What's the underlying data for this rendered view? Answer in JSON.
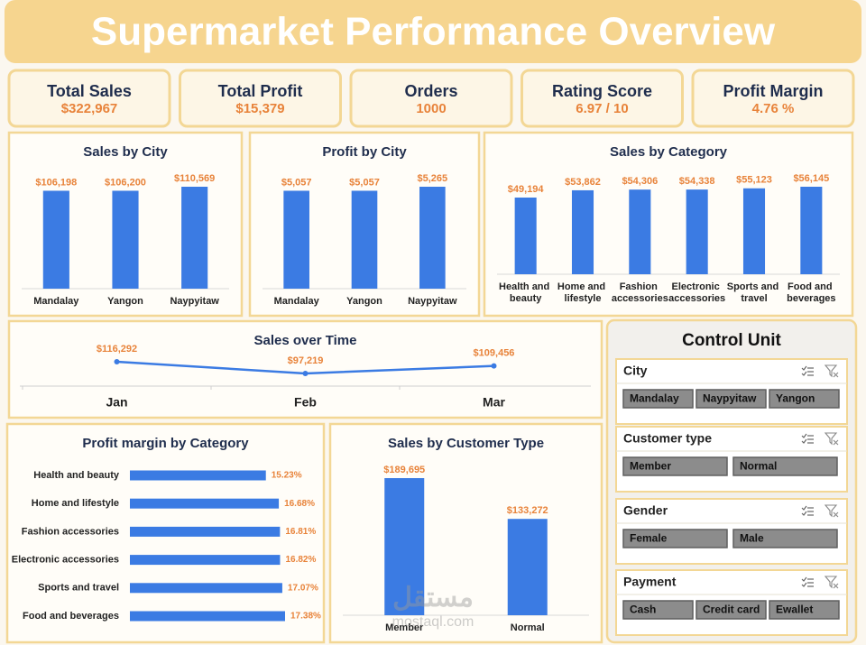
{
  "header": {
    "title": "Supermarket Performance Overview"
  },
  "kpis": [
    {
      "label": "Total Sales",
      "value": "$322,967"
    },
    {
      "label": "Total Profit",
      "value": "$15,379"
    },
    {
      "label": "Orders",
      "value": "1000"
    },
    {
      "label": "Rating Score",
      "value": "6.97 / 10"
    },
    {
      "label": "Profit Margin",
      "value": "4.76 %"
    }
  ],
  "chart_data": [
    {
      "type": "bar",
      "title": "Sales by City",
      "categories": [
        "Mandalay",
        "Yangon",
        "Naypyitaw"
      ],
      "values": [
        106198,
        106200,
        110569
      ],
      "value_labels": [
        "$106,198",
        "$106,200",
        "$110,569"
      ],
      "color": "#3b7be3"
    },
    {
      "type": "bar",
      "title": "Profit by City",
      "categories": [
        "Mandalay",
        "Yangon",
        "Naypyitaw"
      ],
      "values": [
        5057,
        5057,
        5265
      ],
      "value_labels": [
        "$5,057",
        "$5,057",
        "$5,265"
      ],
      "color": "#3b7be3"
    },
    {
      "type": "bar",
      "title": "Sales by Category",
      "categories": [
        "Health and beauty",
        "Home and lifestyle",
        "Fashion accessories",
        "Electronic accessories",
        "Sports and travel",
        "Food and beverages"
      ],
      "values": [
        49194,
        53862,
        54306,
        54338,
        55123,
        56145
      ],
      "value_labels": [
        "$49,194",
        "$53,862",
        "$54,306",
        "$54,338",
        "$55,123",
        "$56,145"
      ],
      "color": "#3b7be3"
    },
    {
      "type": "line",
      "title": "Sales over Time",
      "categories": [
        "Jan",
        "Feb",
        "Mar"
      ],
      "values": [
        116292,
        97219,
        109456
      ],
      "value_labels": [
        "$116,292",
        "$97,219",
        "$109,456"
      ],
      "color": "#3b7be3"
    },
    {
      "type": "hbar",
      "title": "Profit margin by Category",
      "categories": [
        "Health and beauty",
        "Home and lifestyle",
        "Fashion accessories",
        "Electronic accessories",
        "Sports and travel",
        "Food and beverages"
      ],
      "values": [
        15.23,
        16.68,
        16.81,
        16.82,
        17.07,
        17.38
      ],
      "value_labels": [
        "15.23%",
        "16.68%",
        "16.81%",
        "16.82%",
        "17.07%",
        "17.38%"
      ],
      "color": "#3b7be3"
    },
    {
      "type": "bar",
      "title": "Sales by Customer Type",
      "categories": [
        "Member",
        "Normal"
      ],
      "values": [
        189695,
        133272
      ],
      "value_labels": [
        "$189,695",
        "$133,272"
      ],
      "color": "#3b7be3"
    }
  ],
  "control_unit": {
    "title": "Control Unit",
    "slicers": [
      {
        "name": "City",
        "items": [
          "Mandalay",
          "Naypyitaw",
          "Yangon"
        ]
      },
      {
        "name": "Customer type",
        "items": [
          "Member",
          "Normal"
        ]
      },
      {
        "name": "Gender",
        "items": [
          "Female",
          "Male"
        ]
      },
      {
        "name": "Payment",
        "items": [
          "Cash",
          "Credit card",
          "Ewallet"
        ]
      }
    ]
  },
  "watermark": {
    "arabic": "مستقل",
    "latin": "mostaql.com"
  }
}
